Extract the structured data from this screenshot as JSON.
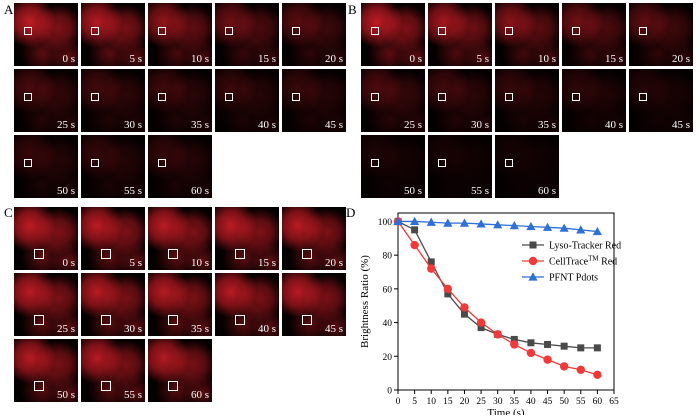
{
  "panels": [
    {
      "label": "A",
      "times": [
        "0 s",
        "5 s",
        "10 s",
        "15 s",
        "20 s",
        "25 s",
        "30 s",
        "35 s",
        "40 s",
        "45 s",
        "50 s",
        "55 s",
        "60 s"
      ],
      "brightness": [
        1.0,
        0.94,
        0.75,
        0.57,
        0.45,
        0.37,
        0.33,
        0.3,
        0.28,
        0.27,
        0.26,
        0.25,
        0.25
      ]
    },
    {
      "label": "B",
      "times": [
        "0 s",
        "5 s",
        "10 s",
        "15 s",
        "20 s",
        "25 s",
        "30 s",
        "35 s",
        "40 s",
        "45 s",
        "50 s",
        "55 s",
        "60 s"
      ],
      "brightness": [
        1.0,
        0.85,
        0.71,
        0.58,
        0.48,
        0.39,
        0.32,
        0.26,
        0.21,
        0.17,
        0.13,
        0.11,
        0.09
      ]
    },
    {
      "label": "C",
      "times": [
        "0 s",
        "5 s",
        "10 s",
        "15 s",
        "20 s",
        "25 s",
        "30 s",
        "35 s",
        "40 s",
        "45 s",
        "50 s",
        "55 s",
        "60 s"
      ],
      "brightness": [
        1.0,
        0.99,
        0.99,
        0.99,
        0.98,
        0.98,
        0.97,
        0.97,
        0.96,
        0.96,
        0.95,
        0.95,
        0.94
      ]
    }
  ],
  "chart_label": "D",
  "colors": {
    "cell": "#e0202a",
    "lyso": "#4a4a4a",
    "celltrace": "#f03a3a",
    "pfnt": "#2f6fd8"
  },
  "chart_data": {
    "type": "line",
    "xlabel": "Time (s)",
    "ylabel": "Brightness Ratio (%)",
    "xlim": [
      0,
      65
    ],
    "ylim": [
      0,
      105
    ],
    "xticks": [
      0,
      5,
      10,
      15,
      20,
      25,
      30,
      35,
      40,
      45,
      50,
      55,
      60,
      65
    ],
    "yticks": [
      0,
      20,
      40,
      60,
      80,
      100
    ],
    "x": [
      0,
      5,
      10,
      15,
      20,
      25,
      30,
      35,
      40,
      45,
      50,
      55,
      60
    ],
    "legend_position": "right",
    "series": [
      {
        "name": "Lyso-Tracker Red",
        "marker": "square",
        "color": "#4a4a4a",
        "values": [
          100,
          95,
          76,
          57,
          45,
          37,
          33,
          30,
          28,
          27,
          26,
          25,
          25
        ]
      },
      {
        "name": "CellTrace",
        "name_sup": "TM",
        "name_suffix": " Red",
        "marker": "circle",
        "color": "#f03a3a",
        "values": [
          100,
          86,
          72,
          60,
          49,
          40,
          33,
          27,
          22,
          18,
          14,
          12,
          9
        ]
      },
      {
        "name": "PFNT Pdots",
        "marker": "triangle",
        "color": "#2f6fd8",
        "values": [
          100,
          100,
          99.5,
          99,
          99,
          98.5,
          98,
          97.5,
          97,
          96.5,
          96,
          95,
          94
        ]
      }
    ]
  }
}
